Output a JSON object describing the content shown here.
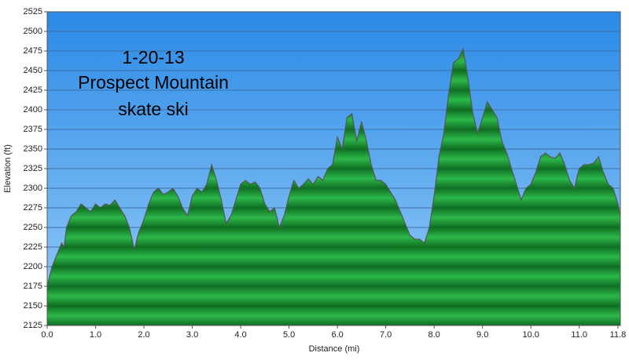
{
  "chart_data": {
    "type": "area",
    "annotations": [
      "1-20-13",
      "Prospect Mountain",
      "skate ski"
    ],
    "x_label": "Distance   (mi)",
    "y_label": "Elevation (ft)",
    "x": [
      0.0,
      0.1,
      0.2,
      0.3,
      0.35,
      0.4,
      0.5,
      0.6,
      0.7,
      0.8,
      0.9,
      1.0,
      1.1,
      1.2,
      1.3,
      1.4,
      1.5,
      1.6,
      1.7,
      1.8,
      1.9,
      2.0,
      2.1,
      2.2,
      2.3,
      2.4,
      2.5,
      2.6,
      2.7,
      2.8,
      2.9,
      3.0,
      3.1,
      3.2,
      3.3,
      3.4,
      3.5,
      3.6,
      3.7,
      3.8,
      3.9,
      4.0,
      4.1,
      4.2,
      4.3,
      4.4,
      4.5,
      4.6,
      4.7,
      4.8,
      4.9,
      5.0,
      5.1,
      5.2,
      5.3,
      5.4,
      5.5,
      5.6,
      5.7,
      5.8,
      5.9,
      6.0,
      6.1,
      6.2,
      6.3,
      6.4,
      6.5,
      6.6,
      6.7,
      6.8,
      6.9,
      7.0,
      7.1,
      7.2,
      7.3,
      7.4,
      7.5,
      7.6,
      7.7,
      7.8,
      7.9,
      8.0,
      8.1,
      8.2,
      8.3,
      8.4,
      8.5,
      8.6,
      8.7,
      8.8,
      8.9,
      9.0,
      9.1,
      9.2,
      9.3,
      9.4,
      9.5,
      9.6,
      9.7,
      9.8,
      9.9,
      10.0,
      10.1,
      10.2,
      10.3,
      10.4,
      10.5,
      10.6,
      10.7,
      10.8,
      10.9,
      11.0,
      11.1,
      11.2,
      11.3,
      11.4,
      11.5,
      11.6,
      11.7,
      11.8,
      11.85
    ],
    "values": [
      2175,
      2200,
      2215,
      2230,
      2225,
      2250,
      2265,
      2270,
      2280,
      2275,
      2270,
      2280,
      2275,
      2280,
      2278,
      2285,
      2275,
      2265,
      2250,
      2222,
      2245,
      2260,
      2280,
      2295,
      2300,
      2292,
      2295,
      2300,
      2290,
      2275,
      2265,
      2290,
      2300,
      2295,
      2305,
      2330,
      2310,
      2285,
      2255,
      2265,
      2285,
      2305,
      2310,
      2305,
      2308,
      2300,
      2280,
      2270,
      2275,
      2250,
      2265,
      2290,
      2310,
      2300,
      2305,
      2312,
      2305,
      2315,
      2310,
      2325,
      2330,
      2365,
      2350,
      2390,
      2395,
      2360,
      2385,
      2360,
      2330,
      2310,
      2310,
      2305,
      2295,
      2285,
      2270,
      2255,
      2240,
      2235,
      2235,
      2230,
      2250,
      2290,
      2340,
      2370,
      2420,
      2460,
      2465,
      2478,
      2440,
      2395,
      2370,
      2390,
      2410,
      2400,
      2390,
      2360,
      2345,
      2325,
      2305,
      2285,
      2300,
      2305,
      2320,
      2340,
      2345,
      2340,
      2338,
      2345,
      2330,
      2310,
      2300,
      2325,
      2330,
      2330,
      2332,
      2340,
      2320,
      2305,
      2300,
      2280,
      2265
    ],
    "color": "#22a63c",
    "xlim": [
      0,
      11.85
    ],
    "ylim": [
      2125,
      2525
    ],
    "xticks": [
      {
        "value": 0,
        "label": "0.0"
      },
      {
        "value": 1,
        "label": "1.0"
      },
      {
        "value": 2,
        "label": "2.0"
      },
      {
        "value": 3,
        "label": "3.0"
      },
      {
        "value": 4,
        "label": "4.0"
      },
      {
        "value": 5,
        "label": "5.0"
      },
      {
        "value": 6,
        "label": "6.0"
      },
      {
        "value": 7,
        "label": "7.0"
      },
      {
        "value": 8,
        "label": "8.0"
      },
      {
        "value": 9,
        "label": "9.0"
      },
      {
        "value": 10,
        "label": "10.0"
      },
      {
        "value": 11,
        "label": "11.0"
      },
      {
        "value": 11.8,
        "label": "11.8"
      }
    ],
    "yticks": [
      2125,
      2150,
      2175,
      2200,
      2225,
      2250,
      2275,
      2300,
      2325,
      2350,
      2375,
      2400,
      2425,
      2450,
      2475,
      2500,
      2525
    ],
    "grid": true
  }
}
